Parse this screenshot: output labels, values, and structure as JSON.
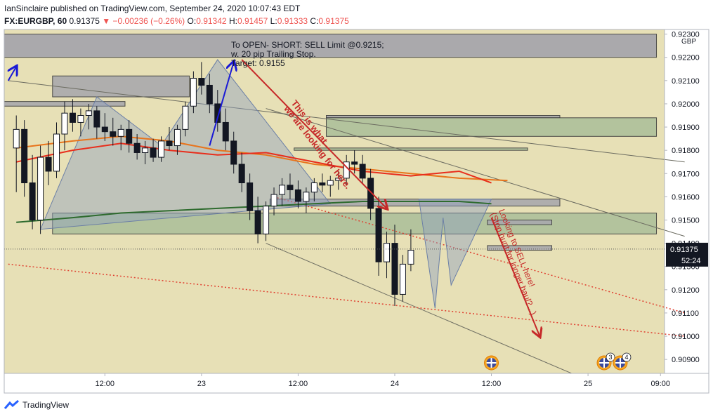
{
  "header": {
    "publisher_line": "IanSinclaire published on TradingView.com, September 24, 2020 10:07:43 EDT",
    "symbol": "FX:EURGBP, 60",
    "last": "0.91375",
    "change": "▼ −0.00236 (−0.26%)",
    "ohlc": [
      {
        "label": "O:",
        "value": "0.91342"
      },
      {
        "label": "H:",
        "value": "0.91457"
      },
      {
        "label": "L:",
        "value": "0.91333"
      },
      {
        "label": "C:",
        "value": "0.91375"
      }
    ]
  },
  "footer": {
    "brand": "TradingView"
  },
  "colors": {
    "up": "#ffffff",
    "down": "#131722",
    "plot_bg": "#e7e0b6",
    "ma_fast": "#e82e1c",
    "ma_mid": "#e8741c",
    "ma_slow": "#2e6b2e",
    "harmonic": "#6b7fa6",
    "note": "#c62828",
    "price_tag": "#131722"
  },
  "chart_data": {
    "type": "candlestick",
    "currency": "GBP",
    "y_ticks": [
      "0.92300",
      "0.92200",
      "0.92100",
      "0.92000",
      "0.91900",
      "0.91800",
      "0.91700",
      "0.91600",
      "0.91500",
      "0.91400",
      "0.91300",
      "0.91200",
      "0.91100",
      "0.91000",
      "0.90900"
    ],
    "ylim": [
      0.9084,
      0.9232
    ],
    "x_ticks": [
      {
        "label": "12:00",
        "bar": 12
      },
      {
        "label": "23",
        "bar": 24
      },
      {
        "label": "12:00",
        "bar": 36
      },
      {
        "label": "24",
        "bar": 48
      },
      {
        "label": "12:00",
        "bar": 60
      },
      {
        "label": "25",
        "bar": 72
      },
      {
        "label": "09:00",
        "bar": 81
      }
    ],
    "bar_count": 82,
    "candles": [
      [
        0.9181,
        0.9195,
        0.9162,
        0.9189
      ],
      [
        0.9189,
        0.9193,
        0.916,
        0.9166
      ],
      [
        0.9166,
        0.9178,
        0.9146,
        0.915
      ],
      [
        0.915,
        0.9182,
        0.9144,
        0.9177
      ],
      [
        0.9177,
        0.9184,
        0.9165,
        0.9171
      ],
      [
        0.9171,
        0.9192,
        0.9168,
        0.9187
      ],
      [
        0.9187,
        0.9201,
        0.918,
        0.9196
      ],
      [
        0.9196,
        0.9202,
        0.9188,
        0.9192
      ],
      [
        0.9192,
        0.9198,
        0.9186,
        0.9195
      ],
      [
        0.9195,
        0.92,
        0.9189,
        0.9197
      ],
      [
        0.9197,
        0.9199,
        0.9185,
        0.919
      ],
      [
        0.919,
        0.9196,
        0.9184,
        0.9188
      ],
      [
        0.9188,
        0.9194,
        0.9182,
        0.9186
      ],
      [
        0.9186,
        0.9191,
        0.918,
        0.9189
      ],
      [
        0.9189,
        0.9193,
        0.9179,
        0.9183
      ],
      [
        0.9183,
        0.9187,
        0.9176,
        0.9179
      ],
      [
        0.9179,
        0.9184,
        0.9174,
        0.9181
      ],
      [
        0.9181,
        0.9185,
        0.9175,
        0.9177
      ],
      [
        0.9177,
        0.9186,
        0.9175,
        0.9184
      ],
      [
        0.9184,
        0.919,
        0.918,
        0.9182
      ],
      [
        0.9182,
        0.9191,
        0.9178,
        0.9189
      ],
      [
        0.9189,
        0.9201,
        0.9186,
        0.9199
      ],
      [
        0.9199,
        0.9214,
        0.9196,
        0.9211
      ],
      [
        0.9211,
        0.9218,
        0.9204,
        0.9208
      ],
      [
        0.9208,
        0.9213,
        0.9196,
        0.92
      ],
      [
        0.92,
        0.9206,
        0.9188,
        0.9192
      ],
      [
        0.9192,
        0.9198,
        0.918,
        0.9184
      ],
      [
        0.9184,
        0.9188,
        0.917,
        0.9174
      ],
      [
        0.9174,
        0.9179,
        0.9162,
        0.9166
      ],
      [
        0.9166,
        0.917,
        0.915,
        0.9154
      ],
      [
        0.9154,
        0.916,
        0.914,
        0.9144
      ],
      [
        0.9144,
        0.9158,
        0.9141,
        0.9156
      ],
      [
        0.9156,
        0.9164,
        0.9152,
        0.9161
      ],
      [
        0.9161,
        0.9168,
        0.9156,
        0.9165
      ],
      [
        0.9165,
        0.917,
        0.9159,
        0.9163
      ],
      [
        0.9163,
        0.9167,
        0.9155,
        0.9158
      ],
      [
        0.9158,
        0.9164,
        0.9153,
        0.9162
      ],
      [
        0.9162,
        0.9168,
        0.9158,
        0.9166
      ],
      [
        0.9166,
        0.917,
        0.9162,
        0.9165
      ],
      [
        0.9165,
        0.9169,
        0.916,
        0.9167
      ],
      [
        0.9167,
        0.9171,
        0.9163,
        0.9168
      ],
      [
        0.9168,
        0.9178,
        0.9165,
        0.9175
      ],
      [
        0.9175,
        0.918,
        0.917,
        0.9174
      ],
      [
        0.9174,
        0.9178,
        0.9166,
        0.9168
      ],
      [
        0.9168,
        0.9172,
        0.915,
        0.9155
      ],
      [
        0.9155,
        0.916,
        0.9126,
        0.9132
      ],
      [
        0.9132,
        0.9145,
        0.9125,
        0.914
      ],
      [
        0.914,
        0.9148,
        0.9113,
        0.9118
      ],
      [
        0.9118,
        0.9135,
        0.9115,
        0.9131
      ],
      [
        0.9131,
        0.9146,
        0.9128,
        0.9137
      ]
    ],
    "candle_start_bar": 1,
    "moving_averages": [
      {
        "key": "ma_mid",
        "points": [
          [
            1,
            0.9181
          ],
          [
            8,
            0.9184
          ],
          [
            14,
            0.9186
          ],
          [
            20,
            0.9184
          ],
          [
            26,
            0.918
          ],
          [
            32,
            0.9178
          ],
          [
            38,
            0.9174
          ],
          [
            44,
            0.9172
          ],
          [
            50,
            0.917
          ],
          [
            56,
            0.9168
          ],
          [
            62,
            0.9167
          ]
        ]
      },
      {
        "key": "ma_fast",
        "points": [
          [
            1,
            0.9175
          ],
          [
            8,
            0.918
          ],
          [
            14,
            0.9183
          ],
          [
            20,
            0.918
          ],
          [
            26,
            0.9178
          ],
          [
            32,
            0.9179
          ],
          [
            38,
            0.9175
          ],
          [
            44,
            0.9171
          ],
          [
            50,
            0.9169
          ],
          [
            56,
            0.9171
          ],
          [
            60,
            0.9166
          ]
        ]
      },
      {
        "key": "ma_slow",
        "points": [
          [
            1,
            0.9149
          ],
          [
            8,
            0.9151
          ],
          [
            14,
            0.9153
          ],
          [
            20,
            0.9154
          ],
          [
            26,
            0.9155
          ],
          [
            32,
            0.9156
          ],
          [
            38,
            0.9157
          ],
          [
            44,
            0.9158
          ],
          [
            50,
            0.9158
          ],
          [
            56,
            0.9158
          ],
          [
            60,
            0.9157
          ]
        ]
      }
    ],
    "zones": [
      {
        "b0": 0,
        "b1": 81,
        "top": 0.923,
        "bot": 0.922,
        "fill": "#a4a4ac"
      },
      {
        "b0": 6,
        "b1": 23,
        "top": 0.9212,
        "bot": 0.9203,
        "fill": "#a9a9ad"
      },
      {
        "b0": 0,
        "b1": 15,
        "top": 0.9201,
        "bot": 0.9199,
        "fill": "#a9a9ad"
      },
      {
        "b0": 40,
        "b1": 69,
        "top": 0.9195,
        "bot": 0.9194,
        "fill": "#a9a9ad"
      },
      {
        "b0": 40,
        "b1": 81,
        "top": 0.9194,
        "bot": 0.9186,
        "fill": "#aec09b"
      },
      {
        "b0": 36,
        "b1": 65,
        "top": 0.9181,
        "bot": 0.918,
        "fill": "#aec09b"
      },
      {
        "b0": 6,
        "b1": 81,
        "top": 0.9153,
        "bot": 0.9144,
        "fill": "#aec09b"
      },
      {
        "b0": 33,
        "b1": 69,
        "top": 0.9159,
        "bot": 0.9156,
        "fill": "#a9a9ad"
      },
      {
        "b0": 60,
        "b1": 68,
        "top": 0.915,
        "bot": 0.9148,
        "fill": "#a9a9ad"
      },
      {
        "b0": 60,
        "b1": 68,
        "top": 0.9139,
        "bot": 0.9137,
        "fill": "#a9a9ad"
      }
    ],
    "harmonics": [
      [
        [
          4,
          0.9146
        ],
        [
          11,
          0.9203
        ],
        [
          19,
          0.9182
        ],
        [
          26,
          0.9219
        ],
        [
          40,
          0.9157
        ]
      ],
      [
        [
          51,
          0.9159
        ],
        [
          53,
          0.9112
        ],
        [
          54,
          0.9151
        ],
        [
          55,
          0.9122
        ],
        [
          60,
          0.9159
        ]
      ]
    ],
    "trend_lines": [
      {
        "from": [
          0,
          0.921
        ],
        "to": [
          84,
          0.9175
        ],
        "color": "#6b6b60"
      },
      {
        "from": [
          32,
          0.914
        ],
        "to": [
          72,
          0.9081
        ],
        "color": "#6b6b60"
      },
      {
        "from": [
          32,
          0.9198
        ],
        "to": [
          84,
          0.9143
        ],
        "color": "#6b6b60"
      }
    ],
    "dotted_lines": [
      {
        "from": [
          0,
          0.9131
        ],
        "to": [
          84,
          0.91
        ],
        "color": "#e04030"
      },
      {
        "from": [
          33,
          0.916
        ],
        "to": [
          84,
          0.911
        ],
        "color": "#e04030"
      }
    ],
    "arrows": [
      {
        "from": [
          29,
          0.9219
        ],
        "to": [
          47,
          0.9155
        ],
        "color": "#c62828"
      },
      {
        "from": [
          60,
          0.9151
        ],
        "to": [
          66,
          0.91
        ],
        "color": "#c62828"
      },
      {
        "from": [
          25,
          0.9182
        ],
        "to": [
          28,
          0.9218
        ],
        "color": "#1a1ad6"
      },
      {
        "from": [
          0,
          0.921
        ],
        "to": [
          1,
          0.9216
        ],
        "color": "#1a1ad6"
      }
    ],
    "annotations": [
      {
        "key": "order",
        "lines": [
          "To OPEN- SHORT: SELL Limit @0.9215;",
          "w. 20 pip Trailing Stop.",
          "Target: 0.9155"
        ]
      },
      {
        "key": "looking_for",
        "lines": [
          "This is what",
          "we are looking for here."
        ]
      },
      {
        "key": "looking_to_sell",
        "lines": [
          "Looking to SELL here!",
          "(Stop hunt for longer haul?...)"
        ]
      }
    ],
    "price_tag": {
      "value": 0.91375,
      "label": "0.91375",
      "countdown": "52:24"
    },
    "events": [
      {
        "bar": 60,
        "count": ""
      },
      {
        "bar": 74,
        "count": "3"
      },
      {
        "bar": 76,
        "count": "4"
      }
    ]
  }
}
